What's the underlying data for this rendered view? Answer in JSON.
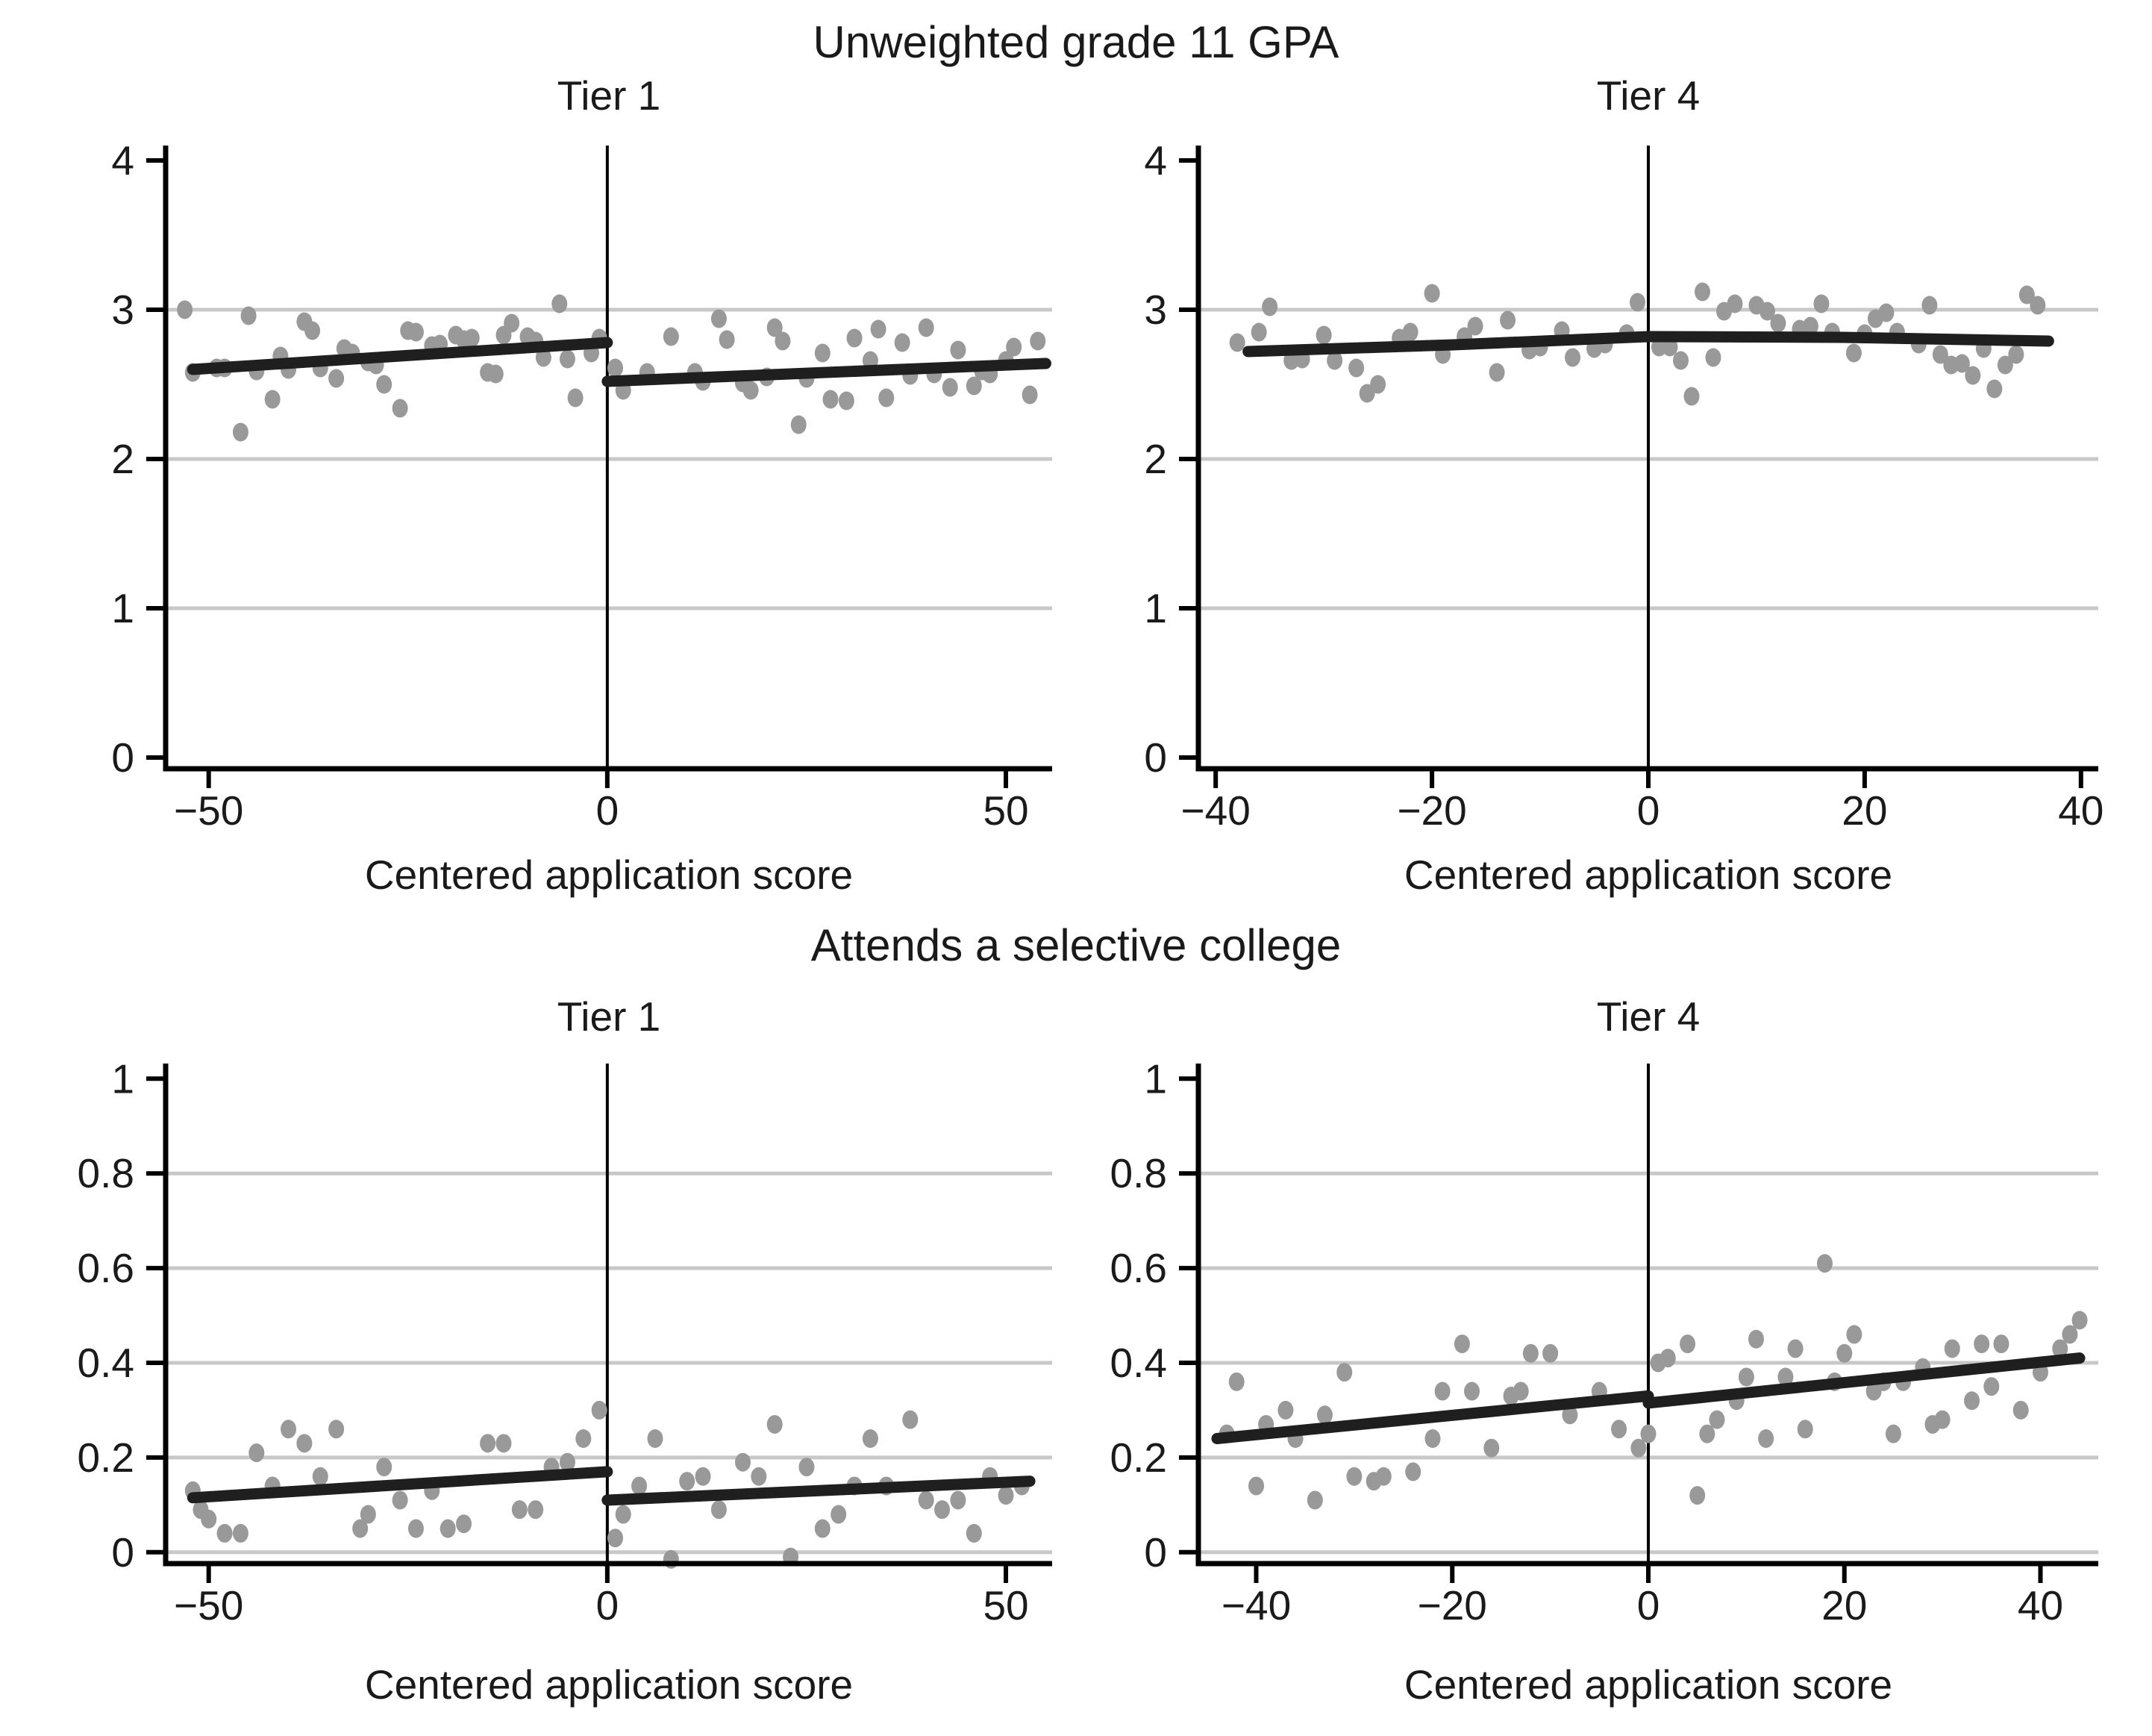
{
  "figure": {
    "title_top": "Unweighted grade 11 GPA",
    "title_bottom": "Attends a selective college",
    "colors": {
      "point": "#999999",
      "fit_line": "#1f1f1f",
      "gridline": "#c8c8c8",
      "axis": "#000000",
      "cutoff_line": "#000000",
      "text": "#1a1a1a",
      "background": "#ffffff"
    }
  },
  "chart_data": [
    {
      "type": "scatter",
      "id": "gpa-tier1",
      "outcome": "Unweighted grade 11 GPA",
      "title": "Tier 1",
      "xlabel": "Centered application score",
      "ylabel": "",
      "xlim": [
        -55.4,
        55.8
      ],
      "ylim": [
        -0.075,
        4.1
      ],
      "xticks": [
        {
          "v": -50,
          "label": "−50"
        },
        {
          "v": 0,
          "label": "0"
        },
        {
          "v": 50,
          "label": "50"
        }
      ],
      "yticks": [
        {
          "v": 0,
          "label": "0",
          "grid": false
        },
        {
          "v": 1,
          "label": "1",
          "grid": true
        },
        {
          "v": 2,
          "label": "2",
          "grid": true
        },
        {
          "v": 3,
          "label": "3",
          "grid": true
        },
        {
          "v": 4,
          "label": "4",
          "grid": false
        }
      ],
      "cutoff_x": 0,
      "points_left": [
        [
          -53,
          3.0
        ],
        [
          -52,
          2.58
        ],
        [
          -49,
          2.61
        ],
        [
          -48,
          2.61
        ],
        [
          -46,
          2.18
        ],
        [
          -45,
          2.96
        ],
        [
          -44,
          2.59
        ],
        [
          -42,
          2.4
        ],
        [
          -41,
          2.69
        ],
        [
          -40,
          2.6
        ],
        [
          -38,
          2.92
        ],
        [
          -37,
          2.86
        ],
        [
          -36,
          2.61
        ],
        [
          -34,
          2.54
        ],
        [
          -33,
          2.74
        ],
        [
          -32,
          2.71
        ],
        [
          -30,
          2.65
        ],
        [
          -29,
          2.63
        ],
        [
          -28,
          2.5
        ],
        [
          -26,
          2.34
        ],
        [
          -25,
          2.86
        ],
        [
          -24,
          2.85
        ],
        [
          -22,
          2.76
        ],
        [
          -21,
          2.77
        ],
        [
          -19,
          2.83
        ],
        [
          -18,
          2.8
        ],
        [
          -17,
          2.81
        ],
        [
          -15,
          2.58
        ],
        [
          -14,
          2.57
        ],
        [
          -13,
          2.83
        ],
        [
          -12,
          2.91
        ],
        [
          -10,
          2.82
        ],
        [
          -9,
          2.79
        ],
        [
          -8,
          2.68
        ],
        [
          -6,
          3.04
        ],
        [
          -5,
          2.67
        ],
        [
          -4,
          2.41
        ],
        [
          -2,
          2.71
        ],
        [
          -1,
          2.81
        ]
      ],
      "points_right": [
        [
          1,
          2.61
        ],
        [
          2,
          2.46
        ],
        [
          5,
          2.58
        ],
        [
          8,
          2.82
        ],
        [
          11,
          2.58
        ],
        [
          12,
          2.52
        ],
        [
          14,
          2.94
        ],
        [
          15,
          2.8
        ],
        [
          17,
          2.51
        ],
        [
          18,
          2.46
        ],
        [
          20,
          2.55
        ],
        [
          21,
          2.88
        ],
        [
          22,
          2.79
        ],
        [
          24,
          2.23
        ],
        [
          25,
          2.54
        ],
        [
          27,
          2.71
        ],
        [
          28,
          2.4
        ],
        [
          30,
          2.39
        ],
        [
          31,
          2.81
        ],
        [
          33,
          2.66
        ],
        [
          34,
          2.87
        ],
        [
          35,
          2.41
        ],
        [
          37,
          2.78
        ],
        [
          38,
          2.56
        ],
        [
          40,
          2.88
        ],
        [
          41,
          2.57
        ],
        [
          43,
          2.48
        ],
        [
          44,
          2.73
        ],
        [
          46,
          2.49
        ],
        [
          47,
          2.59
        ],
        [
          48,
          2.57
        ],
        [
          50,
          2.66
        ],
        [
          51,
          2.75
        ],
        [
          53,
          2.43
        ],
        [
          54,
          2.79
        ]
      ],
      "fit_lines": [
        {
          "name": "fit-left-of-cutoff",
          "points": [
            [
              -52,
              2.6
            ],
            [
              0,
              2.78
            ]
          ]
        },
        {
          "name": "fit-right-of-cutoff",
          "points": [
            [
              0,
              2.52
            ],
            [
              55,
              2.64
            ]
          ]
        }
      ]
    },
    {
      "type": "scatter",
      "id": "gpa-tier4",
      "outcome": "Unweighted grade 11 GPA",
      "title": "Tier 4",
      "xlabel": "Centered application score",
      "ylabel": "",
      "xlim": [
        -41.6,
        41.6
      ],
      "ylim": [
        -0.075,
        4.1
      ],
      "xticks": [
        {
          "v": -40,
          "label": "−40"
        },
        {
          "v": -20,
          "label": "−20"
        },
        {
          "v": 0,
          "label": "0"
        },
        {
          "v": 20,
          "label": "20"
        },
        {
          "v": 40,
          "label": "40"
        }
      ],
      "yticks": [
        {
          "v": 0,
          "label": "0",
          "grid": false
        },
        {
          "v": 1,
          "label": "1",
          "grid": true
        },
        {
          "v": 2,
          "label": "2",
          "grid": true
        },
        {
          "v": 3,
          "label": "3",
          "grid": true
        },
        {
          "v": 4,
          "label": "4",
          "grid": false
        }
      ],
      "cutoff_x": 0,
      "points_left": [
        [
          -38,
          2.78
        ],
        [
          -36,
          2.85
        ],
        [
          -35,
          3.02
        ],
        [
          -33,
          2.66
        ],
        [
          -32,
          2.67
        ],
        [
          -30,
          2.83
        ],
        [
          -29,
          2.66
        ],
        [
          -27,
          2.61
        ],
        [
          -26,
          2.44
        ],
        [
          -25,
          2.5
        ],
        [
          -23,
          2.81
        ],
        [
          -22,
          2.85
        ],
        [
          -20,
          3.11
        ],
        [
          -19,
          2.7
        ],
        [
          -17,
          2.82
        ],
        [
          -16,
          2.89
        ],
        [
          -14,
          2.58
        ],
        [
          -13,
          2.93
        ],
        [
          -11,
          2.73
        ],
        [
          -10,
          2.75
        ],
        [
          -8,
          2.86
        ],
        [
          -7,
          2.68
        ],
        [
          -5,
          2.74
        ],
        [
          -4,
          2.77
        ],
        [
          -2,
          2.84
        ],
        [
          -1,
          3.05
        ]
      ],
      "points_right": [
        [
          1,
          2.75
        ],
        [
          2,
          2.75
        ],
        [
          3,
          2.66
        ],
        [
          4,
          2.42
        ],
        [
          5,
          3.12
        ],
        [
          6,
          2.68
        ],
        [
          7,
          2.99
        ],
        [
          8,
          3.04
        ],
        [
          10,
          3.03
        ],
        [
          11,
          2.99
        ],
        [
          12,
          2.91
        ],
        [
          14,
          2.87
        ],
        [
          15,
          2.89
        ],
        [
          16,
          3.04
        ],
        [
          17,
          2.85
        ],
        [
          19,
          2.71
        ],
        [
          20,
          2.84
        ],
        [
          21,
          2.94
        ],
        [
          22,
          2.98
        ],
        [
          23,
          2.85
        ],
        [
          25,
          2.77
        ],
        [
          26,
          3.03
        ],
        [
          27,
          2.7
        ],
        [
          28,
          2.63
        ],
        [
          29,
          2.64
        ],
        [
          30,
          2.56
        ],
        [
          31,
          2.74
        ],
        [
          32,
          2.47
        ],
        [
          33,
          2.63
        ],
        [
          34,
          2.7
        ],
        [
          35,
          3.1
        ],
        [
          36,
          3.03
        ]
      ],
      "fit_lines": [
        {
          "name": "fit-left-of-cutoff",
          "points": [
            [
              -37,
              2.72
            ],
            [
              -18,
              2.765
            ],
            [
              0,
              2.82
            ]
          ]
        },
        {
          "name": "fit-right-of-cutoff",
          "points": [
            [
              0,
              2.82
            ],
            [
              18,
              2.815
            ],
            [
              37,
              2.79
            ]
          ]
        }
      ]
    },
    {
      "type": "scatter",
      "id": "college-tier1",
      "outcome": "Attends a selective college",
      "title": "Tier 1",
      "xlabel": "Centered application score",
      "ylabel": "",
      "xlim": [
        -55.4,
        55.8
      ],
      "ylim": [
        -0.024,
        1.032
      ],
      "xticks": [
        {
          "v": -50,
          "label": "−50"
        },
        {
          "v": 0,
          "label": "0"
        },
        {
          "v": 50,
          "label": "50"
        }
      ],
      "yticks": [
        {
          "v": 0,
          "label": "0",
          "grid": true
        },
        {
          "v": 0.2,
          "label": "0.2",
          "grid": true
        },
        {
          "v": 0.4,
          "label": "0.4",
          "grid": true
        },
        {
          "v": 0.6,
          "label": "0.6",
          "grid": true
        },
        {
          "v": 0.8,
          "label": "0.8",
          "grid": true
        },
        {
          "v": 1,
          "label": "1",
          "grid": false
        }
      ],
      "cutoff_x": 0,
      "points_left": [
        [
          -52,
          0.13
        ],
        [
          -51,
          0.09
        ],
        [
          -50,
          0.07
        ],
        [
          -48,
          0.04
        ],
        [
          -46,
          0.04
        ],
        [
          -44,
          0.21
        ],
        [
          -42,
          0.14
        ],
        [
          -40,
          0.26
        ],
        [
          -38,
          0.23
        ],
        [
          -36,
          0.16
        ],
        [
          -34,
          0.26
        ],
        [
          -31,
          0.05
        ],
        [
          -30,
          0.08
        ],
        [
          -28,
          0.18
        ],
        [
          -26,
          0.11
        ],
        [
          -24,
          0.05
        ],
        [
          -22,
          0.13
        ],
        [
          -20,
          0.05
        ],
        [
          -18,
          0.06
        ],
        [
          -15,
          0.23
        ],
        [
          -13,
          0.23
        ],
        [
          -11,
          0.09
        ],
        [
          -9,
          0.09
        ],
        [
          -7,
          0.18
        ],
        [
          -5,
          0.19
        ],
        [
          -3,
          0.24
        ],
        [
          -1,
          0.3
        ]
      ],
      "points_right": [
        [
          1,
          0.03
        ],
        [
          2,
          0.08
        ],
        [
          4,
          0.14
        ],
        [
          6,
          0.24
        ],
        [
          8,
          -0.015
        ],
        [
          10,
          0.15
        ],
        [
          12,
          0.16
        ],
        [
          14,
          0.09
        ],
        [
          17,
          0.19
        ],
        [
          19,
          0.16
        ],
        [
          21,
          0.27
        ],
        [
          23,
          -0.01
        ],
        [
          25,
          0.18
        ],
        [
          27,
          0.05
        ],
        [
          29,
          0.08
        ],
        [
          31,
          0.14
        ],
        [
          33,
          0.24
        ],
        [
          35,
          0.14
        ],
        [
          38,
          0.28
        ],
        [
          40,
          0.11
        ],
        [
          42,
          0.09
        ],
        [
          44,
          0.11
        ],
        [
          46,
          0.04
        ],
        [
          48,
          0.16
        ],
        [
          50,
          0.12
        ],
        [
          52,
          0.14
        ]
      ],
      "fit_lines": [
        {
          "name": "fit-left-of-cutoff",
          "points": [
            [
              -52,
              0.115
            ],
            [
              0,
              0.17
            ]
          ]
        },
        {
          "name": "fit-right-of-cutoff",
          "points": [
            [
              0,
              0.11
            ],
            [
              53,
              0.15
            ]
          ]
        }
      ]
    },
    {
      "type": "scatter",
      "id": "college-tier4",
      "outcome": "Attends a selective college",
      "title": "Tier 4",
      "xlabel": "Centered application score",
      "ylabel": "",
      "xlim": [
        -45.9,
        45.9
      ],
      "ylim": [
        -0.024,
        1.032
      ],
      "xticks": [
        {
          "v": -40,
          "label": "−40"
        },
        {
          "v": -20,
          "label": "−20"
        },
        {
          "v": 0,
          "label": "0"
        },
        {
          "v": 20,
          "label": "20"
        },
        {
          "v": 40,
          "label": "40"
        }
      ],
      "yticks": [
        {
          "v": 0,
          "label": "0",
          "grid": true
        },
        {
          "v": 0.2,
          "label": "0.2",
          "grid": true
        },
        {
          "v": 0.4,
          "label": "0.4",
          "grid": true
        },
        {
          "v": 0.6,
          "label": "0.6",
          "grid": true
        },
        {
          "v": 0.8,
          "label": "0.8",
          "grid": true
        },
        {
          "v": 1,
          "label": "1",
          "grid": false
        }
      ],
      "cutoff_x": 0,
      "points_left": [
        [
          -43,
          0.25
        ],
        [
          -42,
          0.36
        ],
        [
          -40,
          0.14
        ],
        [
          -39,
          0.27
        ],
        [
          -37,
          0.3
        ],
        [
          -36,
          0.24
        ],
        [
          -34,
          0.11
        ],
        [
          -33,
          0.29
        ],
        [
          -31,
          0.38
        ],
        [
          -30,
          0.16
        ],
        [
          -28,
          0.15
        ],
        [
          -27,
          0.16
        ],
        [
          -24,
          0.17
        ],
        [
          -22,
          0.24
        ],
        [
          -21,
          0.34
        ],
        [
          -19,
          0.44
        ],
        [
          -18,
          0.34
        ],
        [
          -16,
          0.22
        ],
        [
          -14,
          0.33
        ],
        [
          -13,
          0.34
        ],
        [
          -12,
          0.42
        ],
        [
          -10,
          0.42
        ],
        [
          -8,
          0.29
        ],
        [
          -5,
          0.34
        ],
        [
          -3,
          0.26
        ],
        [
          -1,
          0.22
        ]
      ],
      "points_right": [
        [
          0,
          0.25
        ],
        [
          1,
          0.4
        ],
        [
          2,
          0.41
        ],
        [
          4,
          0.44
        ],
        [
          5,
          0.12
        ],
        [
          6,
          0.25
        ],
        [
          7,
          0.28
        ],
        [
          9,
          0.32
        ],
        [
          10,
          0.37
        ],
        [
          11,
          0.45
        ],
        [
          12,
          0.24
        ],
        [
          14,
          0.37
        ],
        [
          15,
          0.43
        ],
        [
          16,
          0.26
        ],
        [
          18,
          0.61
        ],
        [
          19,
          0.36
        ],
        [
          20,
          0.42
        ],
        [
          21,
          0.46
        ],
        [
          23,
          0.34
        ],
        [
          24,
          0.36
        ],
        [
          25,
          0.25
        ],
        [
          26,
          0.36
        ],
        [
          28,
          0.39
        ],
        [
          29,
          0.27
        ],
        [
          30,
          0.28
        ],
        [
          31,
          0.43
        ],
        [
          33,
          0.32
        ],
        [
          34,
          0.44
        ],
        [
          35,
          0.35
        ],
        [
          36,
          0.44
        ],
        [
          38,
          0.3
        ],
        [
          40,
          0.38
        ],
        [
          42,
          0.43
        ],
        [
          43,
          0.46
        ],
        [
          44,
          0.49
        ]
      ],
      "fit_lines": [
        {
          "name": "fit-left-of-cutoff",
          "points": [
            [
              -44,
              0.24
            ],
            [
              0,
              0.33
            ]
          ]
        },
        {
          "name": "fit-right-of-cutoff",
          "points": [
            [
              0,
              0.315
            ],
            [
              44,
              0.41
            ]
          ]
        }
      ]
    }
  ]
}
